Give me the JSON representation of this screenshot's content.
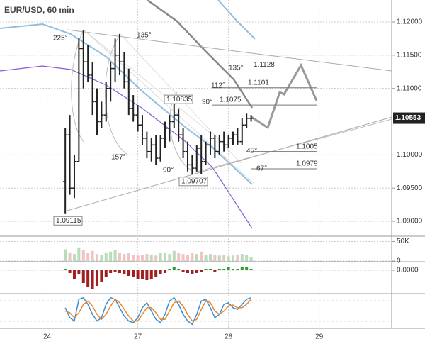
{
  "chart_data": [
    {
      "type": "candlestick",
      "title": "EUR/USD, 60 min",
      "xlim": [
        -14.4,
        72
      ],
      "xticks": [
        {
          "value": -4,
          "label": "24"
        },
        {
          "value": 16,
          "label": "27"
        },
        {
          "value": 36,
          "label": "28"
        },
        {
          "value": 56,
          "label": "29"
        }
      ],
      "ylim": [
        1.08787,
        1.12331
      ],
      "yticks": [
        {
          "value": 1.12,
          "label": "1.12000"
        },
        {
          "value": 1.115,
          "label": "1.11500"
        },
        {
          "value": 1.11,
          "label": "1.11000"
        },
        {
          "value": 1.1,
          "label": "1.10000"
        },
        {
          "value": 1.095,
          "label": "1.09500"
        },
        {
          "value": 1.09,
          "label": "1.09000"
        }
      ],
      "grid": true,
      "color": "#222222",
      "open": [
        1.096,
        1.103,
        1.095,
        1.099,
        1.116,
        1.114,
        1.112,
        1.108,
        1.105,
        1.106,
        1.11,
        1.113,
        1.115,
        1.114,
        1.111,
        1.107,
        1.106,
        1.1045,
        1.1025,
        1.1005,
        1.1015,
        1.0995,
        1.1025,
        1.104,
        1.105,
        1.106,
        1.103,
        1.1005,
        1.0985,
        1.098,
        1.101,
        1.099,
        1.1015,
        1.1025,
        1.1005,
        1.102,
        1.1015,
        1.1025,
        1.103,
        1.102,
        1.1045,
        1.1055
      ],
      "high": [
        1.104,
        1.106,
        1.1,
        1.1175,
        1.1188,
        1.1165,
        1.114,
        1.11,
        1.108,
        1.111,
        1.114,
        1.1175,
        1.1182,
        1.1155,
        1.113,
        1.109,
        1.1075,
        1.106,
        1.1035,
        1.1025,
        1.103,
        1.103,
        1.105,
        1.106,
        1.1084,
        1.107,
        1.104,
        1.102,
        1.1,
        1.1015,
        1.103,
        1.102,
        1.1035,
        1.103,
        1.103,
        1.1035,
        1.103,
        1.1035,
        1.104,
        1.1055,
        1.1062,
        1.106
      ],
      "low": [
        1.0911,
        1.094,
        1.0935,
        1.099,
        1.11,
        1.111,
        1.106,
        1.103,
        1.104,
        1.105,
        1.108,
        1.111,
        1.112,
        1.11,
        1.106,
        1.105,
        1.1035,
        1.1015,
        1.0995,
        1.099,
        1.0985,
        1.099,
        1.101,
        1.102,
        1.104,
        1.102,
        1.0995,
        1.0975,
        1.0971,
        1.0975,
        1.0971,
        1.0985,
        1.1,
        1.0995,
        1.1,
        1.1005,
        1.101,
        1.1015,
        1.1015,
        1.1015,
        1.104,
        1.105
      ],
      "close": [
        1.103,
        1.095,
        1.099,
        1.116,
        1.114,
        1.112,
        1.108,
        1.105,
        1.106,
        1.11,
        1.113,
        1.115,
        1.114,
        1.111,
        1.107,
        1.106,
        1.1045,
        1.1025,
        1.1005,
        1.1015,
        1.0995,
        1.1025,
        1.104,
        1.105,
        1.106,
        1.103,
        1.1005,
        1.0985,
        1.098,
        1.101,
        1.099,
        1.1015,
        1.1025,
        1.1005,
        1.102,
        1.1015,
        1.1025,
        1.103,
        1.102,
        1.1045,
        1.1055,
        1.1055
      ],
      "last_price": 1.10553,
      "levels": [
        1.1128,
        1.1101,
        1.1075,
        1.1005,
        1.0979
      ],
      "price_boxes": [
        1.10835,
        1.09707,
        1.09115
      ],
      "annotations": [
        "225°",
        "135°",
        "157°",
        "90°",
        "112°",
        "90°",
        "135°",
        "45°",
        "67°"
      ]
    },
    {
      "type": "bar",
      "ylim": [
        0,
        60000
      ],
      "yticks": [
        {
          "value": 50000,
          "label": "50K"
        },
        0
      ],
      "up_color": "#b9dcb9",
      "down_color": "#f0c4c4",
      "values": [
        30000,
        22000,
        18000,
        35000,
        28000,
        20000,
        26000,
        18000,
        15000,
        20000,
        24000,
        28000,
        22000,
        18000,
        20000,
        15000,
        14000,
        16000,
        18000,
        15000,
        14000,
        20000,
        22000,
        18000,
        26000,
        20000,
        18000,
        16000,
        22000,
        18000,
        24000,
        16000,
        18000,
        15000,
        14000,
        16000,
        12000,
        14000,
        15000,
        18000,
        16000,
        10000
      ]
    },
    {
      "type": "bar",
      "ylim": [
        -0.0016,
        0.00055
      ],
      "yticks": [
        {
          "value": 0,
          "label": "0.0000"
        }
      ],
      "up_color": "#2e9b2e",
      "down_color": "#a02020",
      "values": [
        0.0001,
        -0.0002,
        -0.0006,
        -0.0003,
        -0.0009,
        -0.0012,
        -0.0013,
        -0.0011,
        -0.0008,
        -0.0005,
        -0.0002,
        -0.0001,
        -0.0002,
        -0.0003,
        -0.0004,
        -0.0005,
        -0.0006,
        -0.0006,
        -0.0007,
        -0.0006,
        -0.0005,
        -0.0003,
        -0.0002,
        0.0001,
        0.0002,
        0.0001,
        -0.0001,
        -0.0002,
        -0.0003,
        -0.0002,
        -0.0001,
        0.0001,
        0.0001,
        -0.0001,
        0.0001,
        0.0001,
        0.0002,
        0.0001,
        0.0001,
        0.0002,
        0.0002,
        0.0001
      ]
    },
    {
      "type": "line",
      "ylim": [
        0,
        100
      ],
      "series": [
        {
          "color": "#3a8fd6",
          "values": [
            60,
            30,
            20,
            85,
            90,
            70,
            40,
            20,
            30,
            70,
            90,
            85,
            60,
            35,
            20,
            15,
            30,
            60,
            75,
            50,
            25,
            15,
            40,
            80,
            90,
            70,
            40,
            20,
            10,
            40,
            80,
            85,
            60,
            30,
            40,
            70,
            75,
            60,
            55,
            70,
            85,
            90
          ]
        },
        {
          "color": "#e8862a",
          "values": [
            50,
            45,
            30,
            45,
            70,
            80,
            65,
            40,
            25,
            40,
            65,
            85,
            75,
            55,
            35,
            20,
            20,
            40,
            60,
            60,
            45,
            25,
            25,
            50,
            75,
            80,
            65,
            40,
            20,
            25,
            55,
            80,
            75,
            50,
            40,
            50,
            65,
            68,
            60,
            60,
            70,
            85
          ]
        }
      ]
    }
  ]
}
